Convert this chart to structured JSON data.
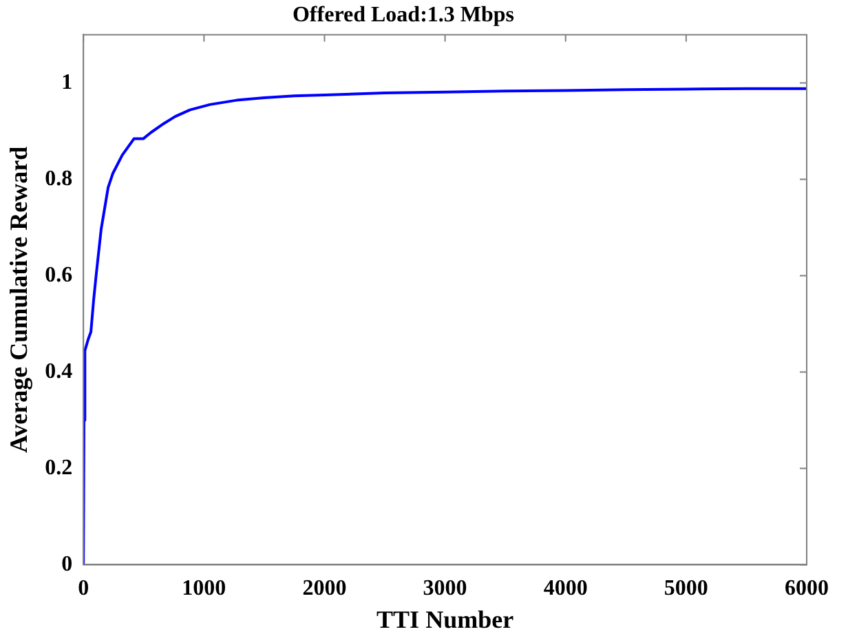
{
  "chart_data": {
    "type": "line",
    "title": "Offered Load:1.3 Mbps",
    "xlabel": "TTI Number",
    "ylabel": "Average Cumulative Reward",
    "x": [
      0,
      5,
      12,
      40,
      62,
      85,
      109,
      147,
      205,
      244,
      322,
      419,
      496,
      560,
      651,
      760,
      884,
      1050,
      1271,
      1500,
      1750,
      2000,
      2500,
      3000,
      3500,
      4000,
      4500,
      5000,
      5500,
      6000
    ],
    "series": [
      {
        "color": "#0000ff",
        "values": [
          0,
          0.3,
          0.444,
          0.468,
          0.483,
          0.55,
          0.609,
          0.696,
          0.783,
          0.812,
          0.85,
          0.884,
          0.884,
          0.897,
          0.913,
          0.93,
          0.944,
          0.955,
          0.964,
          0.969,
          0.973,
          0.975,
          0.979,
          0.981,
          0.983,
          0.984,
          0.986,
          0.987,
          0.988,
          0.988
        ]
      }
    ],
    "xlim": [
      0,
      6000
    ],
    "xticks": [
      0,
      1000,
      2000,
      3000,
      4000,
      5000,
      6000
    ],
    "ylim": [
      0,
      1.1
    ],
    "yticks": [
      0,
      0.2,
      0.4,
      0.6,
      0.8,
      1
    ],
    "grid": false,
    "legend": false,
    "marker": "none",
    "line_style": "solid"
  }
}
